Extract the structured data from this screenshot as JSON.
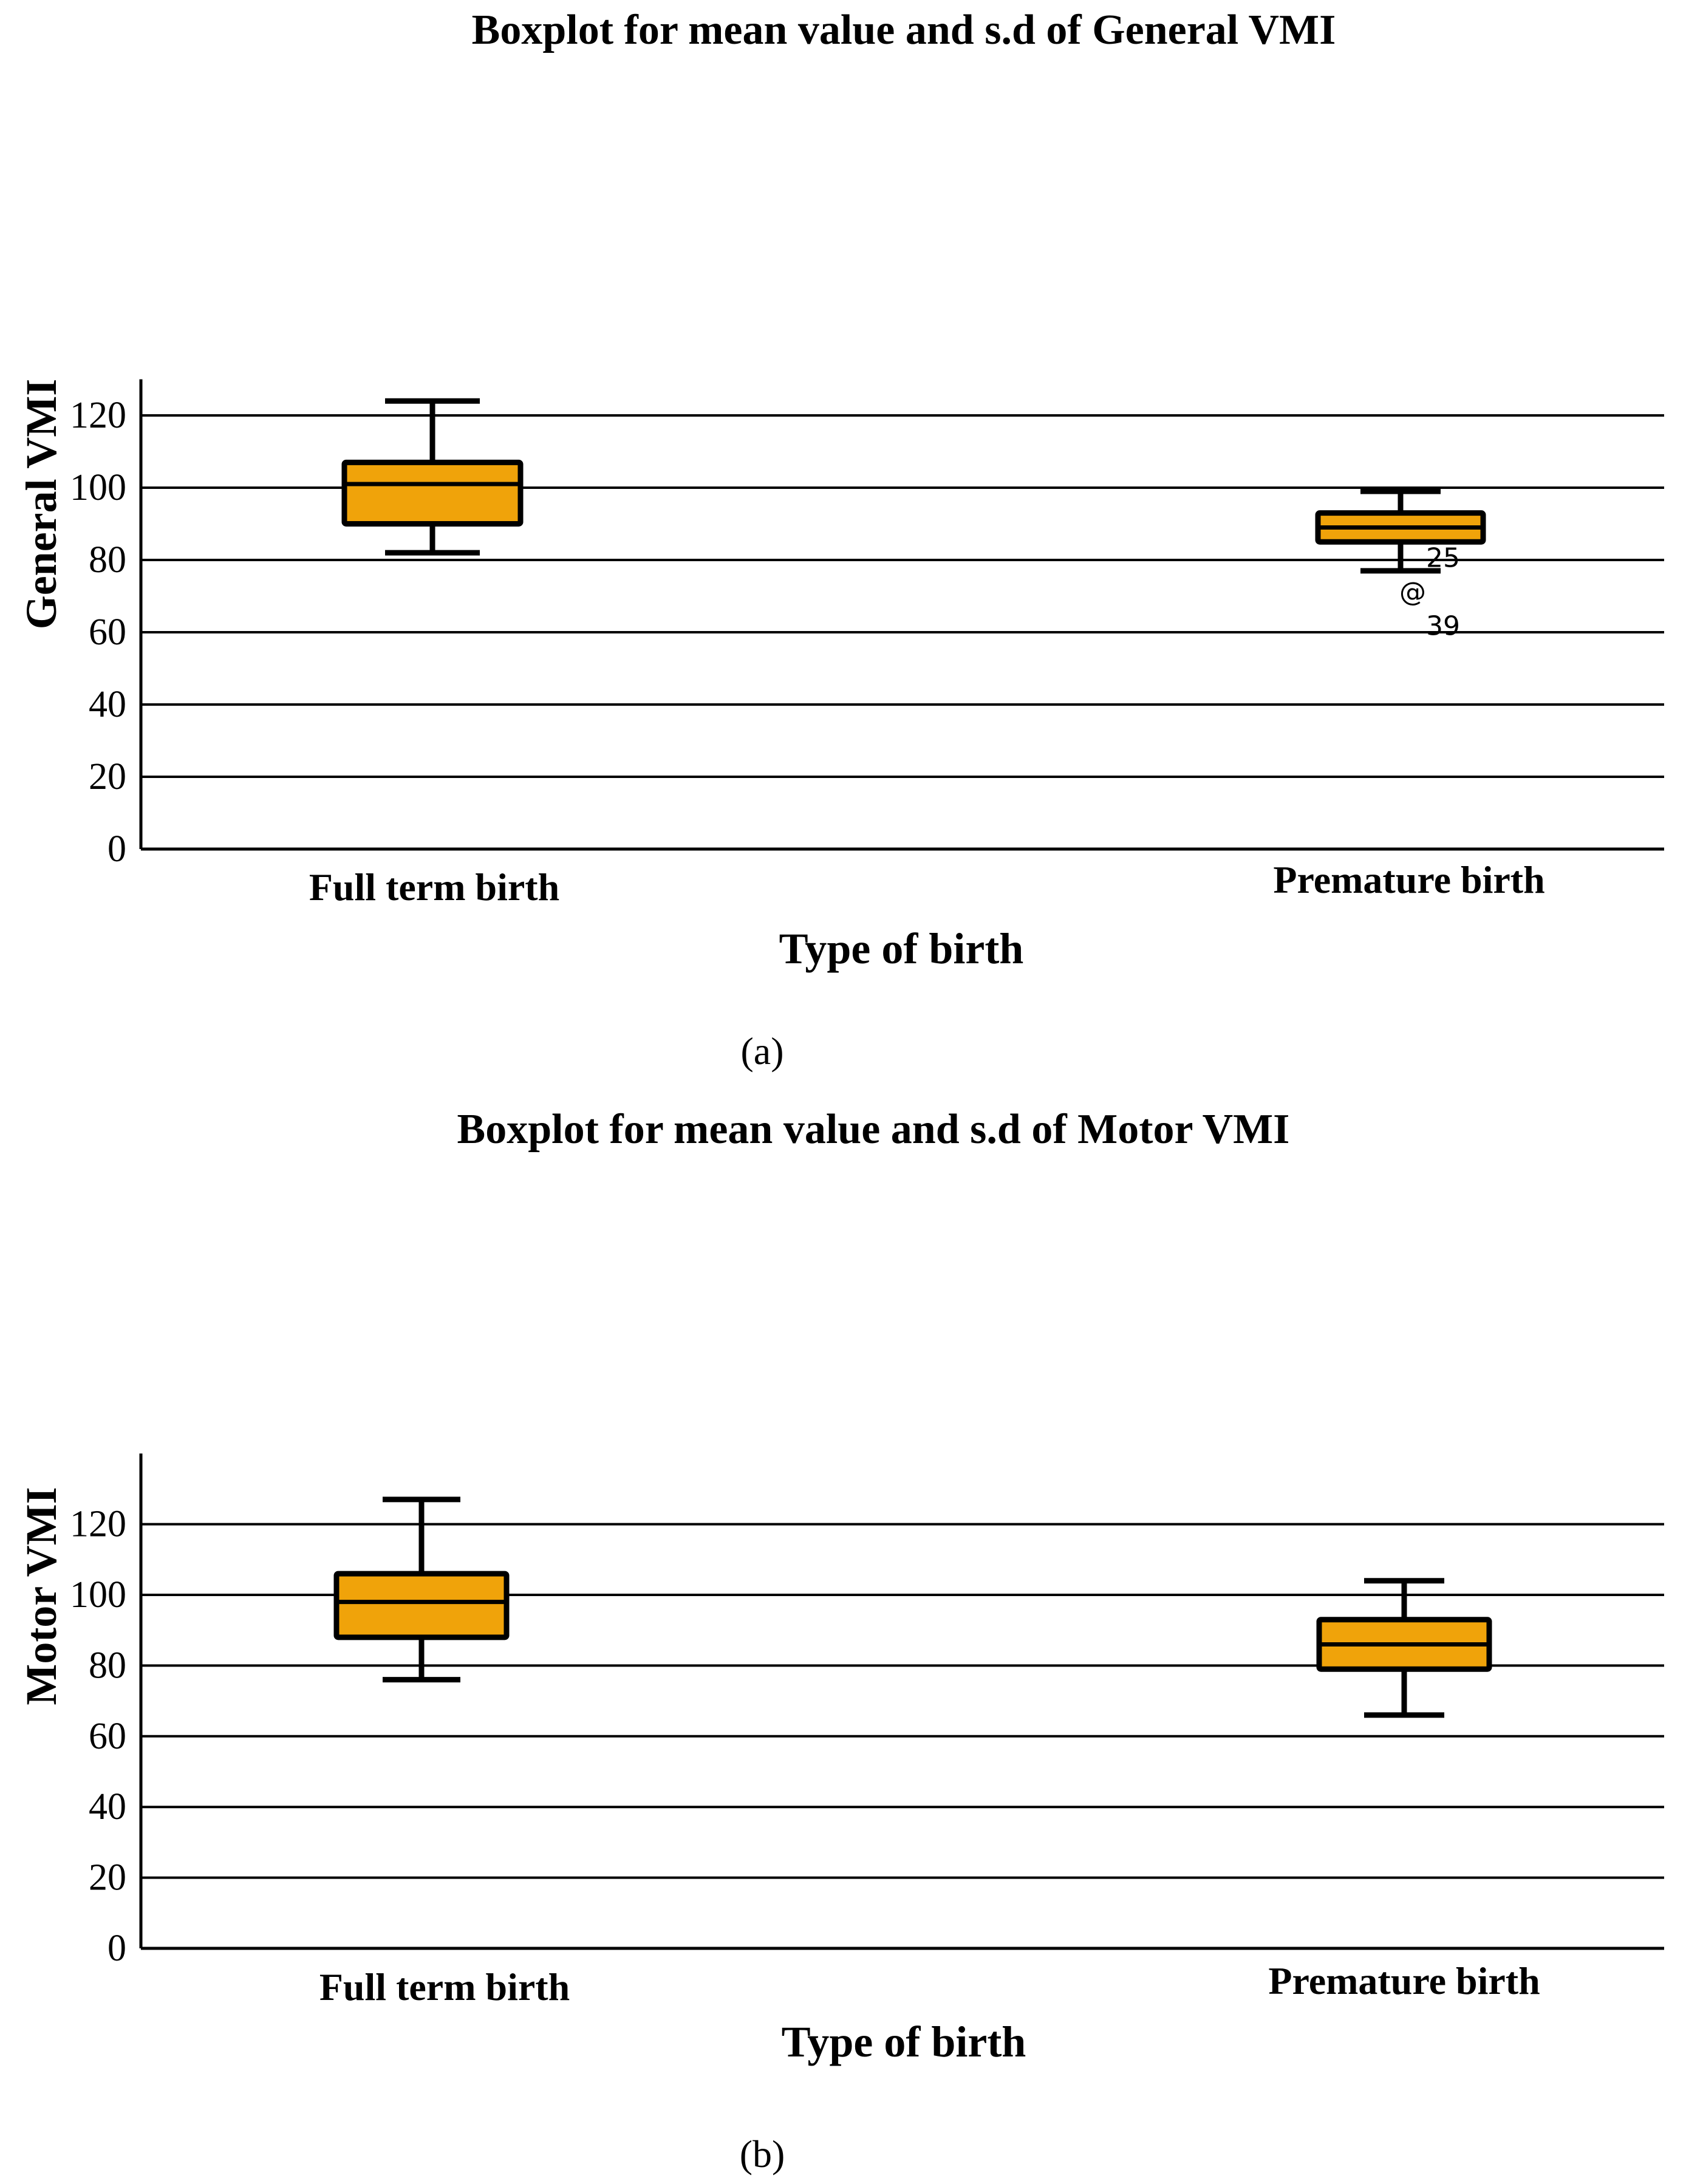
{
  "colors": {
    "box_fill": "#f0a30a",
    "stroke": "#000000",
    "background": "#ffffff"
  },
  "chart_data": [
    {
      "type": "boxplot",
      "title": "Boxplot for mean value and s.d of General VMI",
      "xlabel": "Type of birth",
      "ylabel": "General VMI",
      "panel_label": "(a)",
      "ylim": [
        0,
        130
      ],
      "yticks": [
        0,
        20,
        40,
        60,
        80,
        100,
        120
      ],
      "gridlines": [
        20,
        40,
        60,
        80,
        100,
        120
      ],
      "categories": [
        "Full term birth",
        "Premature birth"
      ],
      "boxes": [
        {
          "category": "Full term birth",
          "whisker_low": 82,
          "q1": 90,
          "median": 101,
          "q3": 107,
          "whisker_high": 124
        },
        {
          "category": "Premature birth",
          "whisker_low": 77,
          "q1": 85,
          "median": 89,
          "q3": 93,
          "whisker_high": 99
        }
      ],
      "outliers": [
        {
          "category": "Premature birth",
          "value": 71,
          "symbol": "@",
          "labels": [
            "25",
            "39"
          ]
        }
      ]
    },
    {
      "type": "boxplot",
      "title": "Boxplot for mean value and s.d of Motor VMI",
      "xlabel": "Type of birth",
      "ylabel": "Motor VMI",
      "panel_label": "(b)",
      "ylim": [
        0,
        140
      ],
      "yticks": [
        0,
        20,
        40,
        60,
        80,
        100,
        120
      ],
      "gridlines": [
        20,
        40,
        60,
        80,
        100,
        120
      ],
      "categories": [
        "Full term birth",
        "Premature birth"
      ],
      "boxes": [
        {
          "category": "Full term birth",
          "whisker_low": 76,
          "q1": 88,
          "median": 98,
          "q3": 106,
          "whisker_high": 127
        },
        {
          "category": "Premature birth",
          "whisker_low": 66,
          "q1": 79,
          "median": 86,
          "q3": 93,
          "whisker_high": 104
        }
      ],
      "outliers": []
    }
  ]
}
